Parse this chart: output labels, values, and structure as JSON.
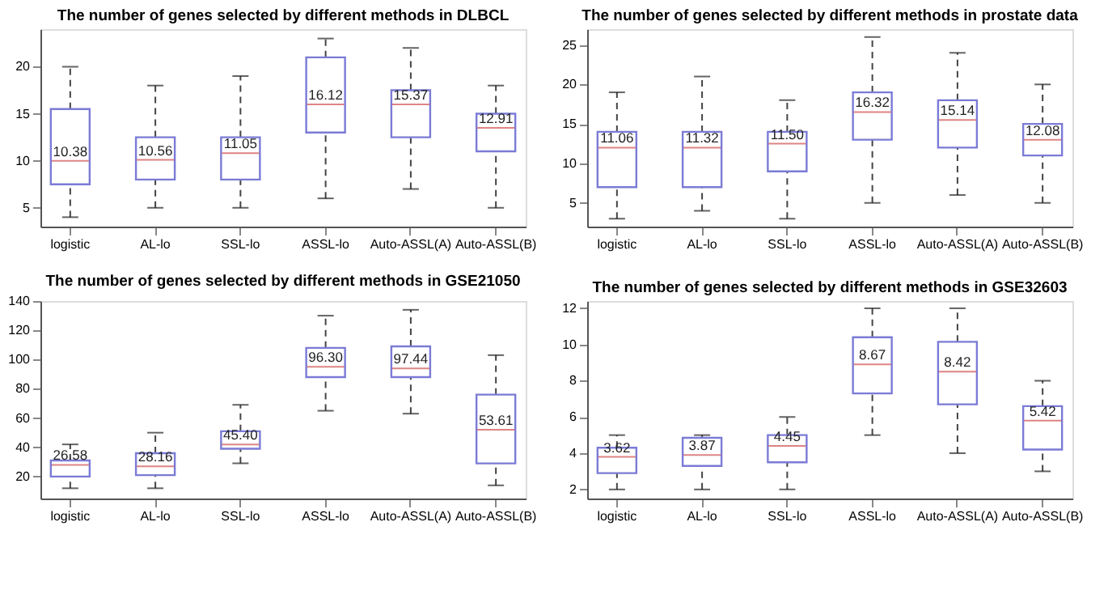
{
  "chart_data": [
    {
      "type": "box",
      "title": "The number of genes selected by different methods in DLBCL",
      "categories": [
        "logistic",
        "AL-lo",
        "SSL-lo",
        "ASSL-lo",
        "Auto-ASSL(A)",
        "Auto-ASSL(B)"
      ],
      "ylim": [
        3,
        24
      ],
      "yticks": [
        5,
        10,
        15,
        20
      ],
      "grid": false,
      "color": "#7b7bd6",
      "line_style": "dashed",
      "boxes": [
        {
          "low": 4,
          "q1": 7.5,
          "median": 10,
          "q3": 15.5,
          "high": 20
        },
        {
          "low": 5,
          "q1": 8,
          "median": 10.1,
          "q3": 12.5,
          "high": 18
        },
        {
          "low": 5,
          "q1": 8,
          "median": 10.8,
          "q3": 12.5,
          "high": 19
        },
        {
          "low": 6,
          "q1": 13,
          "median": 16,
          "q3": 21,
          "high": 23
        },
        {
          "low": 7,
          "q1": 12.5,
          "median": 16,
          "q3": 17.5,
          "high": 22
        },
        {
          "low": 5,
          "q1": 11,
          "median": 13.5,
          "q3": 15,
          "high": 18
        }
      ],
      "value_labels": [
        "10.38",
        "10.56",
        "11.05",
        "16.12",
        "15.37",
        "12.91"
      ]
    },
    {
      "type": "box",
      "title": "The number of genes selected by different methods in prostate data",
      "categories": [
        "logistic",
        "AL-lo",
        "SSL-lo",
        "ASSL-lo",
        "Auto-ASSL(A)",
        "Auto-ASSL(B)"
      ],
      "ylim": [
        2,
        27
      ],
      "yticks": [
        5,
        10,
        15,
        20,
        25
      ],
      "grid": false,
      "color": "#7b7bd6",
      "line_style": "dashed",
      "boxes": [
        {
          "low": 3,
          "q1": 7,
          "median": 12,
          "q3": 14,
          "high": 19
        },
        {
          "low": 4,
          "q1": 7,
          "median": 12,
          "q3": 14,
          "high": 21
        },
        {
          "low": 3,
          "q1": 9,
          "median": 12.5,
          "q3": 14,
          "high": 18
        },
        {
          "low": 5,
          "q1": 13,
          "median": 16.5,
          "q3": 19,
          "high": 26
        },
        {
          "low": 6,
          "q1": 12,
          "median": 15.5,
          "q3": 18,
          "high": 24
        },
        {
          "low": 5,
          "q1": 11,
          "median": 13,
          "q3": 15,
          "high": 20
        }
      ],
      "value_labels": [
        "11.06",
        "11.32",
        "11.50",
        "16.32",
        "15.14",
        "12.08"
      ]
    },
    {
      "type": "box",
      "title": "The number of  genes selected by different methods in GSE21050",
      "categories": [
        "logistic",
        "AL-lo",
        "SSL-lo",
        "ASSL-lo",
        "Auto-ASSL(A)",
        "Auto-ASSL(B)"
      ],
      "ylim": [
        5,
        140
      ],
      "yticks": [
        20,
        40,
        60,
        80,
        100,
        120,
        140
      ],
      "grid": false,
      "color": "#7b7bd6",
      "line_style": "dashed",
      "boxes": [
        {
          "low": 12,
          "q1": 20,
          "median": 28,
          "q3": 31,
          "high": 42
        },
        {
          "low": 12,
          "q1": 21,
          "median": 27,
          "q3": 36,
          "high": 50
        },
        {
          "low": 29,
          "q1": 39,
          "median": 42,
          "q3": 51,
          "high": 69
        },
        {
          "low": 65,
          "q1": 88,
          "median": 95,
          "q3": 108,
          "high": 130
        },
        {
          "low": 63,
          "q1": 88,
          "median": 94,
          "q3": 109,
          "high": 134
        },
        {
          "low": 14,
          "q1": 29,
          "median": 52,
          "q3": 76,
          "high": 103
        }
      ],
      "value_labels": [
        "26.58",
        "28.16",
        "45.40",
        "96.30",
        "97.44",
        "53.61"
      ]
    },
    {
      "type": "box",
      "title": "The number of genes selected by different methods in GSE32603",
      "categories": [
        "logistic",
        "AL-lo",
        "SSL-lo",
        "ASSL-lo",
        "Auto-ASSL(A)",
        "Auto-ASSL(B)"
      ],
      "ylim": [
        1.5,
        12.4
      ],
      "yticks": [
        2,
        4,
        6,
        8,
        10,
        12
      ],
      "grid": false,
      "color": "#7b7bd6",
      "line_style": "dashed",
      "boxes": [
        {
          "low": 2,
          "q1": 2.9,
          "median": 3.8,
          "q3": 4.3,
          "high": 5
        },
        {
          "low": 2,
          "q1": 3.3,
          "median": 3.9,
          "q3": 4.85,
          "high": 5
        },
        {
          "low": 2,
          "q1": 3.5,
          "median": 4.4,
          "q3": 5,
          "high": 6
        },
        {
          "low": 5,
          "q1": 7.3,
          "median": 8.9,
          "q3": 10.4,
          "high": 12
        },
        {
          "low": 4,
          "q1": 6.7,
          "median": 8.5,
          "q3": 10.15,
          "high": 12
        },
        {
          "low": 3,
          "q1": 4.2,
          "median": 5.8,
          "q3": 6.6,
          "high": 8
        }
      ],
      "value_labels": [
        "3.62",
        "3.87",
        "4.45",
        "8.67",
        "8.42",
        "5.42"
      ]
    }
  ]
}
